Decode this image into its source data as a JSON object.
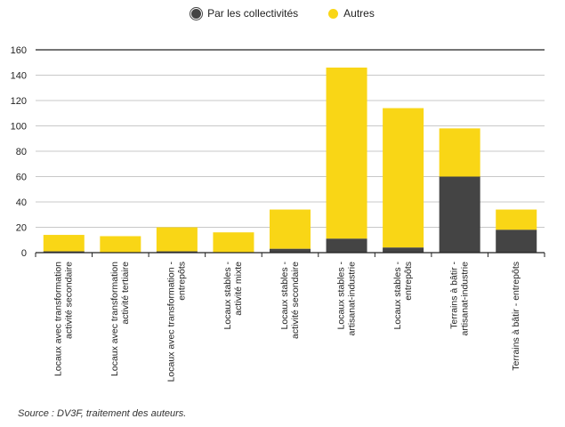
{
  "legend": {
    "collectivites": "Par les collectivités",
    "autres": "Autres"
  },
  "colors": {
    "collectivites": "#444444",
    "autres": "#f9d616",
    "axis": "#222222",
    "grid": "#c8c8c8"
  },
  "source": "Source : DV3F, traitement des auteurs.",
  "chart_data": {
    "type": "bar",
    "stacked": true,
    "categories": [
      [
        "Locaux avec transformation",
        "activité secondaire"
      ],
      [
        "Locaux avec transformation",
        "activité tertiaire"
      ],
      [
        "Locaux avec transformation -",
        "entrepôts"
      ],
      [
        "Locaux stables -",
        "activité mixte"
      ],
      [
        "Locaux stables -",
        "activité secondaire"
      ],
      [
        "Locaux stables -",
        "artisanat-industrie"
      ],
      [
        "Locaux stables -",
        "entrepôts"
      ],
      [
        "Terrains à bâtir -",
        "artisanat-industrie"
      ],
      [
        "Terrains à bâtir - entrepôts"
      ]
    ],
    "series": [
      {
        "name": "Par les collectivités",
        "values": [
          1,
          0,
          1,
          0,
          3,
          11,
          4,
          60,
          18
        ]
      },
      {
        "name": "Autres",
        "values": [
          13,
          13,
          19,
          16,
          31,
          135,
          110,
          38,
          16
        ]
      }
    ],
    "yticks": [
      0,
      20,
      40,
      60,
      80,
      100,
      120,
      140,
      160
    ],
    "ylim": [
      0,
      160
    ],
    "grid": true,
    "legend_position": "top-center"
  }
}
